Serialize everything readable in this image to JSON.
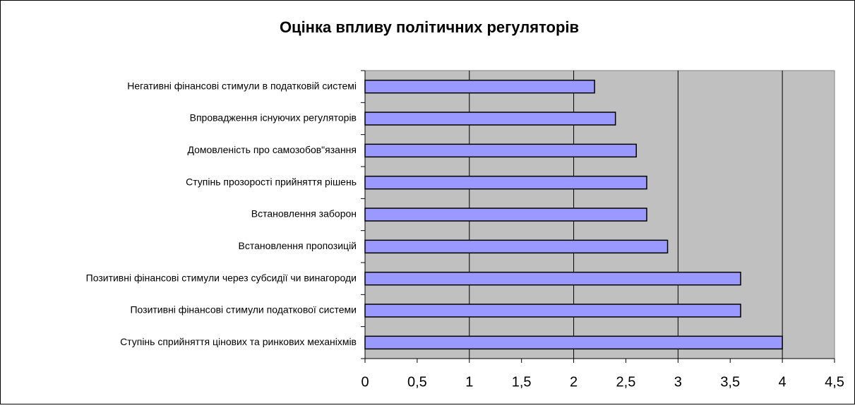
{
  "chart_data": {
    "type": "bar",
    "orientation": "horizontal",
    "title": "Оцінка впливу політичних регуляторів",
    "categories": [
      "Негативні фінансові стимули в податковій системі",
      "Впровадження існуючих регуляторів",
      "Домовленість про самозобов\"язання",
      "Ступінь прозорості прийняття рішень",
      "Встановлення заборон",
      "Встановлення пропозицій",
      "Позитивні фінансові стимули через субсидії чи винагороди",
      "Позитивні фінансові стимули податкової системи",
      "Ступінь сприйняття цінових та ринкових механіхмів"
    ],
    "values": [
      2.2,
      2.4,
      2.6,
      2.7,
      2.7,
      2.9,
      3.6,
      3.6,
      4
    ],
    "color": "#9999ff",
    "xlim": [
      0,
      4.5
    ],
    "xticks": [
      0,
      {
        "value": 0.5,
        "label": "0,5"
      },
      1,
      {
        "value": 1.5,
        "label": "1,5"
      },
      2,
      {
        "value": 2.5,
        "label": "2,5"
      },
      3,
      {
        "value": 3.5,
        "label": "3,5"
      },
      4,
      {
        "value": 4.5,
        "label": "4,5"
      }
    ],
    "grid": true
  }
}
